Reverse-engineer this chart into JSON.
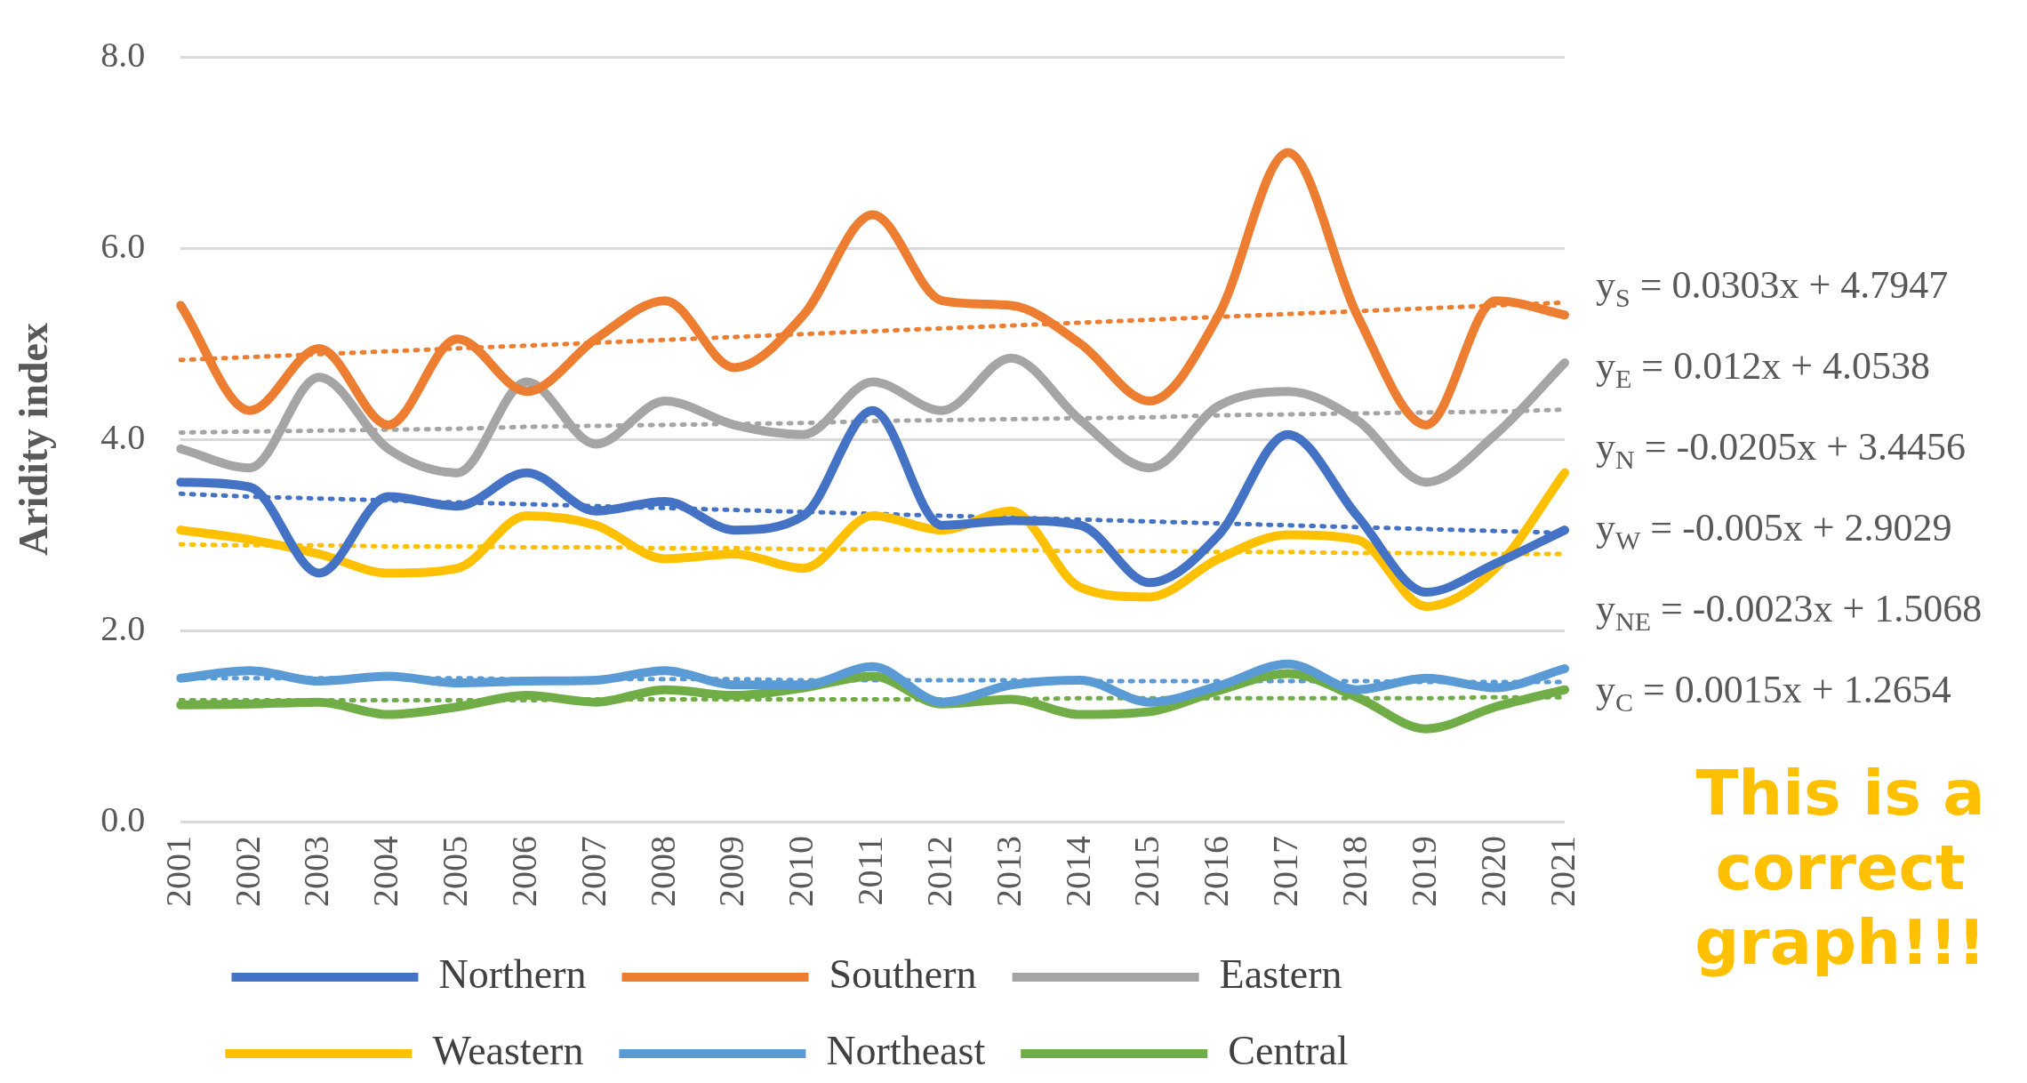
{
  "chart_data": {
    "type": "line",
    "ylabel": "Aridity index",
    "categories": [
      "2001",
      "2002",
      "2003",
      "2004",
      "2005",
      "2006",
      "2007",
      "2008",
      "2009",
      "2010",
      "2011",
      "2012",
      "2013",
      "2014",
      "2015",
      "2016",
      "2017",
      "2018",
      "2019",
      "2020",
      "2021"
    ],
    "ylim": [
      0,
      8
    ],
    "yticks": [
      {
        "value": 0,
        "label": "0.0"
      },
      {
        "value": 2,
        "label": "2.0"
      },
      {
        "value": 4,
        "label": "4.0"
      },
      {
        "value": 6,
        "label": "6.0"
      },
      {
        "value": 8,
        "label": "8.0"
      }
    ],
    "grid": "y",
    "legend": "bottom",
    "marker": "none",
    "line_style": "solid",
    "series": [
      {
        "name": "Northern",
        "color": "#4472c4",
        "values": [
          3.55,
          3.5,
          2.6,
          3.4,
          3.3,
          3.65,
          3.25,
          3.35,
          3.05,
          3.2,
          4.3,
          3.1,
          3.15,
          3.1,
          2.5,
          3.0,
          4.05,
          3.2,
          2.4,
          2.7,
          3.05
        ]
      },
      {
        "name": "Southern",
        "color": "#ed7d31",
        "values": [
          5.4,
          4.3,
          4.95,
          4.15,
          5.05,
          4.5,
          5.05,
          5.45,
          4.75,
          5.3,
          6.35,
          5.45,
          5.4,
          5.0,
          4.4,
          5.3,
          7.0,
          5.3,
          4.15,
          5.45,
          5.3
        ]
      },
      {
        "name": "Eastern",
        "color": "#a5a5a5",
        "values": [
          3.9,
          3.7,
          4.65,
          3.9,
          3.65,
          4.6,
          3.95,
          4.4,
          4.15,
          4.05,
          4.6,
          4.3,
          4.85,
          4.2,
          3.7,
          4.35,
          4.5,
          4.2,
          3.55,
          4.05,
          4.8
        ]
      },
      {
        "name": "Weastern",
        "color": "#ffc000",
        "values": [
          3.05,
          2.95,
          2.8,
          2.6,
          2.65,
          3.2,
          3.1,
          2.75,
          2.8,
          2.65,
          3.2,
          3.05,
          3.25,
          2.45,
          2.35,
          2.75,
          3.0,
          2.95,
          2.25,
          2.65,
          3.65
        ]
      },
      {
        "name": "Northeast",
        "color": "#5b9bd5",
        "values": [
          1.5,
          1.58,
          1.47,
          1.52,
          1.45,
          1.47,
          1.48,
          1.58,
          1.43,
          1.43,
          1.62,
          1.25,
          1.43,
          1.48,
          1.25,
          1.42,
          1.65,
          1.38,
          1.5,
          1.4,
          1.6
        ]
      },
      {
        "name": "Central",
        "color": "#70ad47",
        "values": [
          1.22,
          1.23,
          1.25,
          1.12,
          1.2,
          1.32,
          1.25,
          1.38,
          1.32,
          1.4,
          1.52,
          1.23,
          1.28,
          1.12,
          1.15,
          1.37,
          1.55,
          1.3,
          0.97,
          1.2,
          1.38
        ]
      },
      {
        "type": "line",
        "line_style": "dotted",
        "color": "#ed7d31",
        "values": [
          4.83,
          4.86,
          4.89,
          4.92,
          4.95,
          4.98,
          5.01,
          5.04,
          5.07,
          5.1,
          5.13,
          5.16,
          5.19,
          5.22,
          5.25,
          5.28,
          5.31,
          5.34,
          5.37,
          5.4,
          5.43
        ]
      },
      {
        "type": "line",
        "line_style": "dotted",
        "color": "#a5a5a5",
        "values": [
          4.07,
          4.08,
          4.09,
          4.1,
          4.11,
          4.13,
          4.14,
          4.15,
          4.16,
          4.17,
          4.19,
          4.2,
          4.21,
          4.22,
          4.23,
          4.25,
          4.26,
          4.27,
          4.28,
          4.29,
          4.31
        ]
      },
      {
        "type": "line",
        "line_style": "dotted",
        "color": "#4472c4",
        "values": [
          3.43,
          3.4,
          3.38,
          3.36,
          3.34,
          3.32,
          3.3,
          3.28,
          3.26,
          3.24,
          3.22,
          3.2,
          3.18,
          3.16,
          3.14,
          3.12,
          3.1,
          3.08,
          3.06,
          3.04,
          3.02
        ]
      },
      {
        "type": "line",
        "line_style": "dotted",
        "color": "#ffc000",
        "values": [
          2.9,
          2.89,
          2.89,
          2.88,
          2.88,
          2.87,
          2.87,
          2.86,
          2.86,
          2.85,
          2.85,
          2.84,
          2.84,
          2.83,
          2.83,
          2.82,
          2.82,
          2.81,
          2.81,
          2.8,
          2.8
        ]
      },
      {
        "type": "line",
        "line_style": "dotted",
        "color": "#5b9bd5",
        "values": [
          1.5,
          1.5,
          1.5,
          1.5,
          1.5,
          1.49,
          1.49,
          1.49,
          1.49,
          1.48,
          1.48,
          1.48,
          1.48,
          1.47,
          1.47,
          1.47,
          1.47,
          1.47,
          1.46,
          1.46,
          1.46
        ]
      },
      {
        "type": "line",
        "line_style": "dotted",
        "color": "#70ad47",
        "values": [
          1.27,
          1.27,
          1.27,
          1.27,
          1.27,
          1.27,
          1.28,
          1.28,
          1.28,
          1.28,
          1.28,
          1.28,
          1.28,
          1.29,
          1.29,
          1.29,
          1.29,
          1.29,
          1.29,
          1.3,
          1.3
        ]
      }
    ],
    "annotations": [
      "y$_{S}$ = 0.0303x + 4.7947",
      "y$_{E}$ = 0.012x + 4.0538",
      "y$_{N}$ = -0.0205x + 3.4456",
      "y$_{W}$ = -0.005x + 2.9029",
      "y$_{NE}$ = -0.0023x + 1.5068",
      "y$_{C}$ = 0.0015x + 1.2654",
      "This is a correct graph!!!"
    ]
  }
}
